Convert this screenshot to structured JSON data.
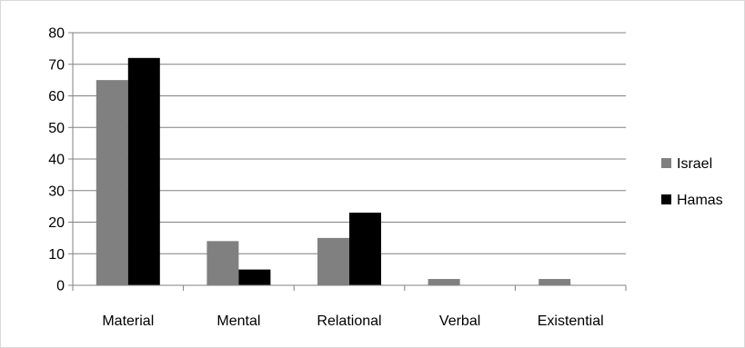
{
  "chart_data": {
    "type": "bar",
    "title": "",
    "xlabel": "",
    "ylabel": "",
    "categories": [
      "Material",
      "Mental",
      "Relational",
      "Verbal",
      "Existential"
    ],
    "series": [
      {
        "name": "Israel",
        "color": "#808080",
        "values": [
          65,
          14,
          15,
          2,
          2
        ]
      },
      {
        "name": "Hamas",
        "color": "#000000",
        "values": [
          72,
          5,
          23,
          0,
          0
        ]
      }
    ],
    "ylim": [
      0,
      80
    ],
    "yticks": [
      0,
      10,
      20,
      30,
      40,
      50,
      60,
      70,
      80
    ],
    "grid": true,
    "legend_position": "right"
  }
}
